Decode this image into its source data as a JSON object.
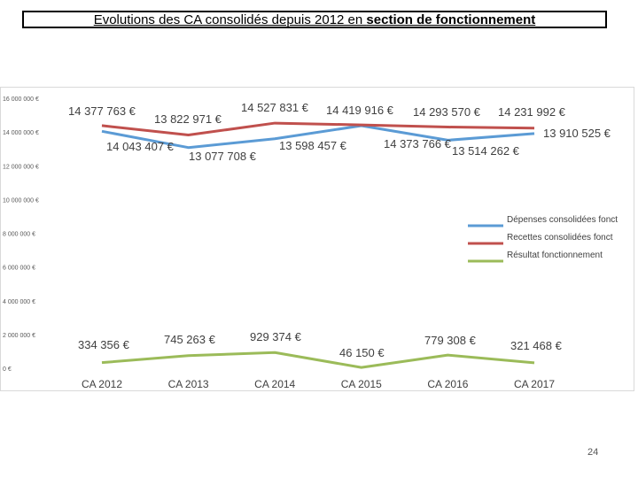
{
  "title": {
    "lead": "Evolutions des CA consolidés depuis 2012 en ",
    "emphasis": "section de fonctionnement"
  },
  "page_number": "24",
  "chart_data": {
    "type": "line",
    "categories": [
      "CA 2012",
      "CA 2013",
      "CA 2014",
      "CA 2015",
      "CA 2016",
      "CA 2017"
    ],
    "y_ticks": [
      "0 €",
      "2 000 000 €",
      "4 000 000 €",
      "6 000 000 €",
      "8 000 000 €",
      "10 000 000 €",
      "12 000 000 €",
      "14 000 000 €",
      "16 000 000 €"
    ],
    "ylim": [
      0,
      16000000
    ],
    "legend_position": "right",
    "series": [
      {
        "name": "Dépenses consolidées fonct",
        "color": "#5b9bd5",
        "values": [
          14043407,
          13077708,
          13598457,
          14373766,
          13514262,
          13910525
        ],
        "labels": [
          "14 043 407 €",
          "13 077 708 €",
          "13 598 457 €",
          "14 373 766 €",
          "13 514 262 €",
          "13 910 525 €"
        ]
      },
      {
        "name": "Recettes consolidées fonct",
        "color": "#c0504d",
        "values": [
          14377763,
          13822971,
          14527831,
          14419916,
          14293570,
          14231992
        ],
        "labels": [
          "14 377 763 €",
          "13 822 971 €",
          "14 527 831 €",
          "14 419 916 €",
          "14 293 570 €",
          "14 231 992 €"
        ]
      },
      {
        "name": "Résultat fonctionnement",
        "color": "#9bbb59",
        "values": [
          334356,
          745263,
          929374,
          46150,
          779308,
          321468
        ],
        "labels": [
          "334 356 €",
          "745 263 €",
          "929 374 €",
          "46 150 €",
          "779 308 €",
          "321 468 €"
        ]
      }
    ]
  }
}
